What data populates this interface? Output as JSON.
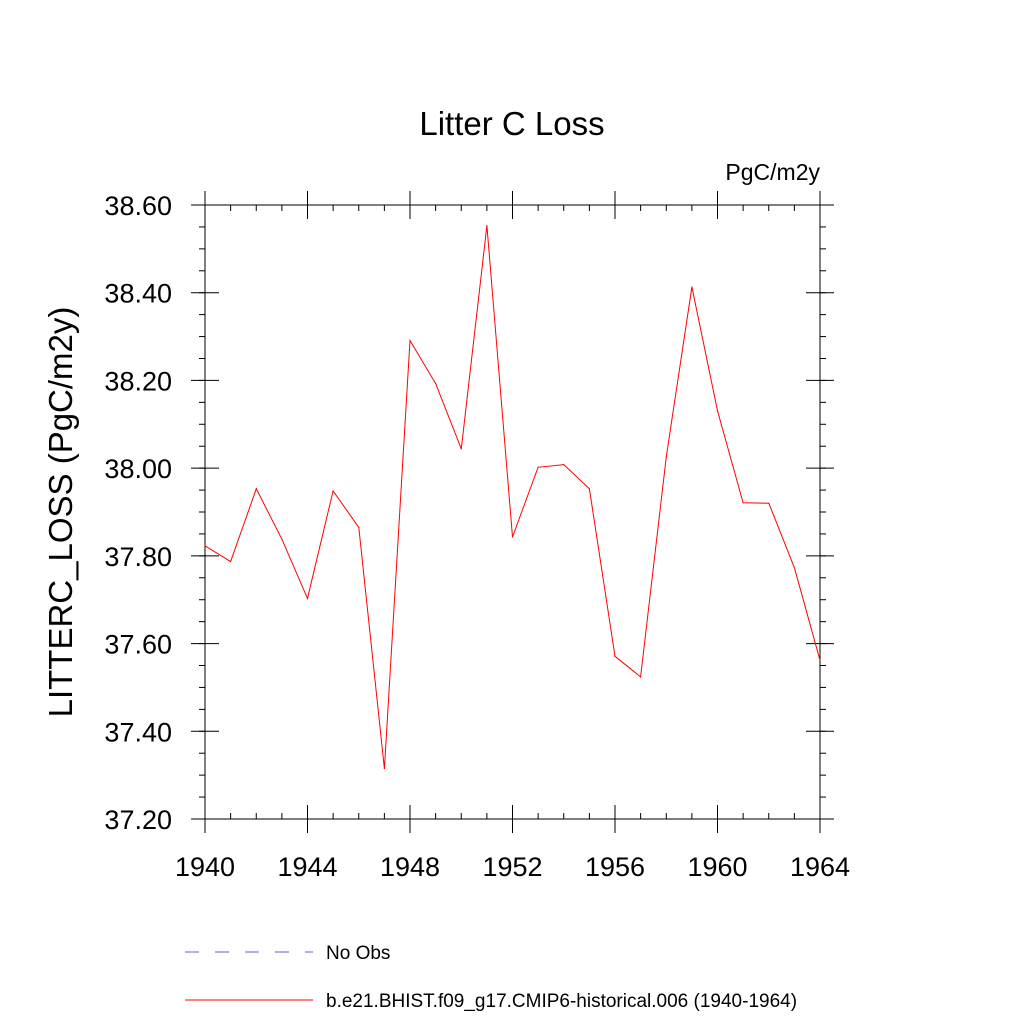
{
  "chart_data": {
    "type": "line",
    "title": "Litter C Loss",
    "units_label": "PgC/m2y",
    "xlabel": "",
    "ylabel": "LITTERC_LOSS  (PgC/m2y)",
    "xlim": [
      1940,
      1964
    ],
    "ylim": [
      37.2,
      38.6
    ],
    "x_ticks": [
      1940,
      1944,
      1948,
      1952,
      1956,
      1960,
      1964
    ],
    "y_ticks": [
      37.2,
      37.4,
      37.6,
      37.8,
      38.0,
      38.2,
      38.4,
      38.6
    ],
    "x_tick_labels": [
      "1940",
      "1944",
      "1948",
      "1952",
      "1956",
      "1960",
      "1964"
    ],
    "y_tick_labels": [
      "37.20",
      "37.40",
      "37.60",
      "37.80",
      "38.00",
      "38.20",
      "38.40",
      "38.60"
    ],
    "x_minor_step": 1,
    "y_minor_step": 0.05,
    "grid": false,
    "legend_position": "bottom",
    "series": [
      {
        "name": "b.e21.BHIST.f09_g17.CMIP6-historical.006 (1940-1964)",
        "color": "#ff0000",
        "dash": "solid",
        "x": [
          1940,
          1941,
          1942,
          1943,
          1944,
          1945,
          1946,
          1947,
          1948,
          1949,
          1950,
          1951,
          1952,
          1953,
          1954,
          1955,
          1956,
          1957,
          1958,
          1959,
          1960,
          1961,
          1962,
          1963,
          1964
        ],
        "y": [
          37.823,
          37.787,
          37.953,
          37.838,
          37.703,
          37.948,
          37.865,
          37.315,
          38.291,
          38.193,
          38.044,
          38.553,
          37.843,
          38.002,
          38.008,
          37.953,
          37.571,
          37.524,
          38.026,
          38.413,
          38.131,
          37.921,
          37.92,
          37.773,
          37.562
        ]
      }
    ],
    "legend": [
      {
        "label": "No Obs",
        "color": "#6a5acd",
        "dash": "dashed"
      },
      {
        "label": "b.e21.BHIST.f09_g17.CMIP6-historical.006 (1940-1964)",
        "color": "#ff0000",
        "dash": "solid"
      }
    ]
  }
}
